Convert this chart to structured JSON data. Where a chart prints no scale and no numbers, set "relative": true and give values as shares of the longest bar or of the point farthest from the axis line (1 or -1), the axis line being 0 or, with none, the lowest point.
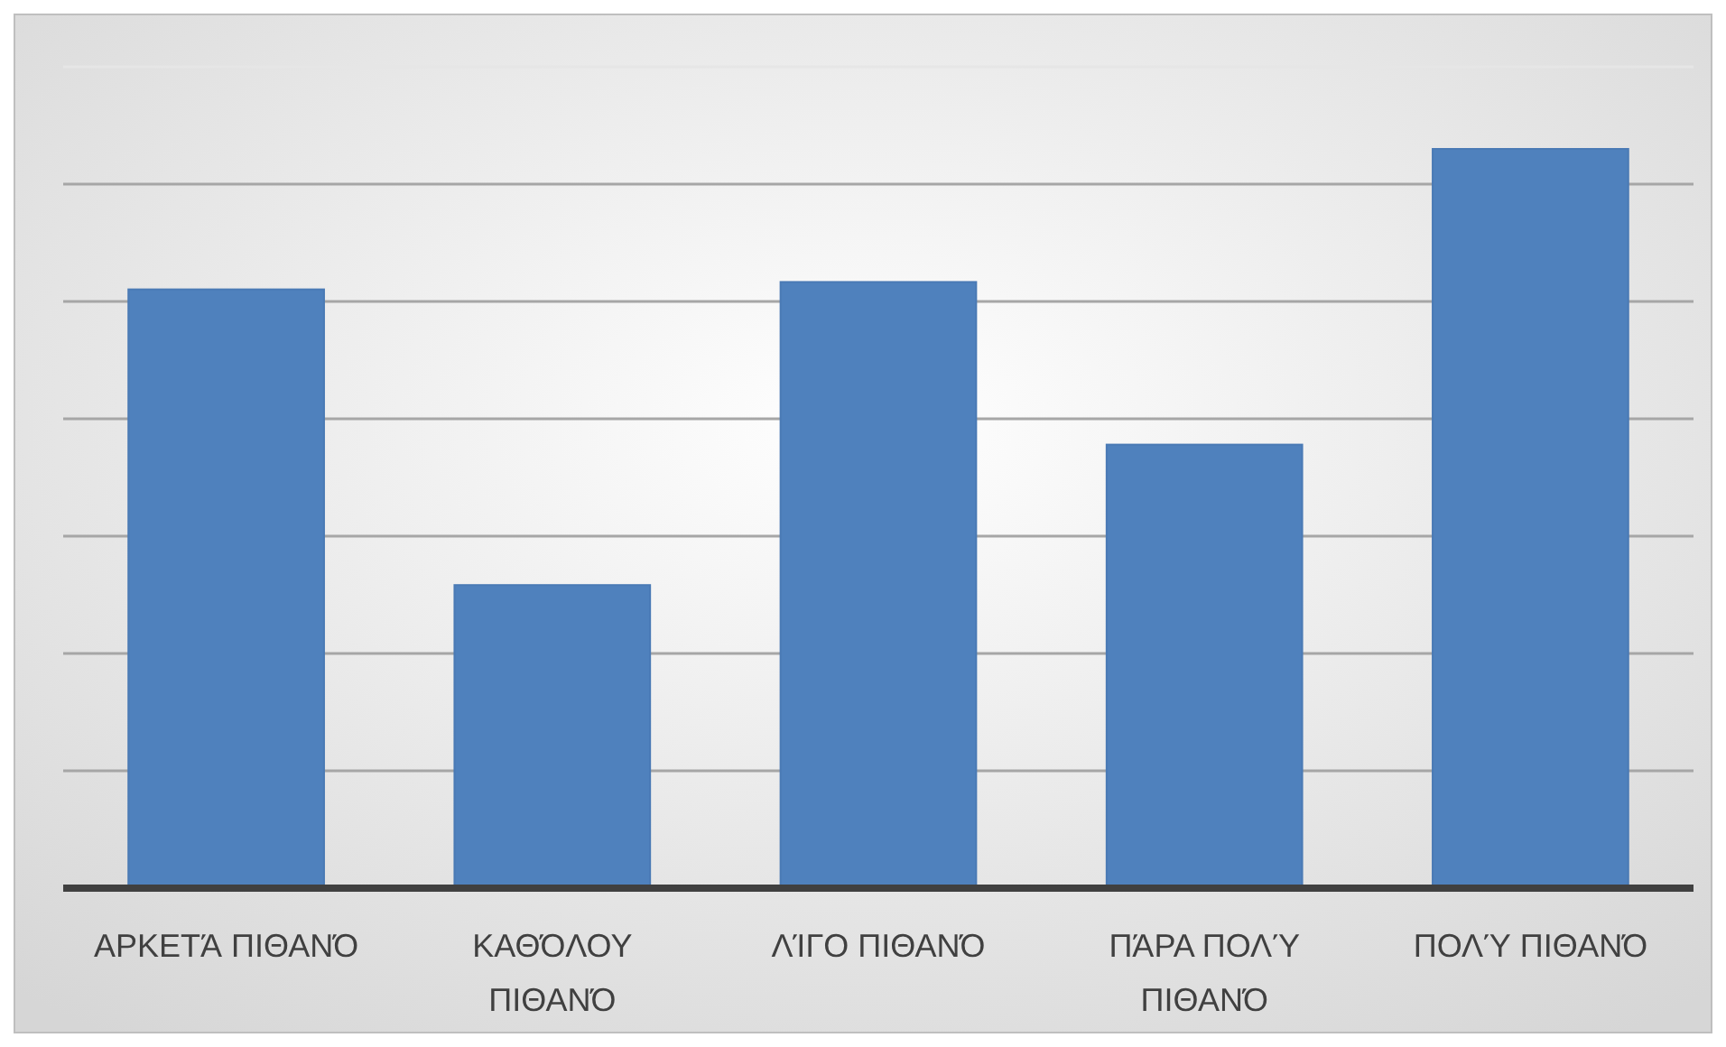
{
  "chart_data": {
    "type": "bar",
    "relative": true,
    "categories": [
      "ΑΡΚΕΤΆ ΠΙΘΑΝΌ",
      "ΚΑΘΌΛΟΥ ΠΙΘΑΝΌ",
      "ΛΊΓΟ ΠΙΘΑΝΌ",
      "ΠΆΡΑ ΠΟΛΎ ΠΙΘΑΝΌ",
      "ΠΟΛΎ ΠΙΘΑΝΌ"
    ],
    "values": [
      0.81,
      0.41,
      0.82,
      0.6,
      1
    ],
    "color": "#4f81bd",
    "grid": true
  }
}
